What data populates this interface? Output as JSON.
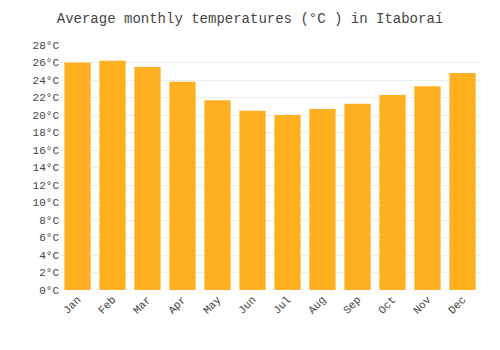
{
  "chart_data": {
    "type": "bar",
    "title": "Average monthly temperatures (°C ) in Itaboraí",
    "categories": [
      "Jan",
      "Feb",
      "Mar",
      "Apr",
      "May",
      "Jun",
      "Jul",
      "Aug",
      "Sep",
      "Oct",
      "Nov",
      "Dec"
    ],
    "values": [
      26.0,
      26.2,
      25.5,
      23.8,
      21.7,
      20.5,
      20.0,
      20.7,
      21.3,
      22.3,
      23.3,
      24.8
    ],
    "color": "#FFB020",
    "ylim": [
      0,
      28
    ],
    "yticks": [
      {
        "value": 0,
        "label": "0°C"
      },
      {
        "value": 2,
        "label": "2°C"
      },
      {
        "value": 4,
        "label": "4°C"
      },
      {
        "value": 6,
        "label": "6°C"
      },
      {
        "value": 8,
        "label": "8°C"
      },
      {
        "value": 10,
        "label": "10°C"
      },
      {
        "value": 12,
        "label": "12°C"
      },
      {
        "value": 14,
        "label": "14°C"
      },
      {
        "value": 16,
        "label": "16°C"
      },
      {
        "value": 18,
        "label": "18°C"
      },
      {
        "value": 20,
        "label": "20°C"
      },
      {
        "value": 22,
        "label": "22°C"
      },
      {
        "value": 24,
        "label": "24°C"
      },
      {
        "value": 26,
        "label": "26°C"
      },
      {
        "value": 28,
        "label": "28°C"
      }
    ],
    "grid": true
  }
}
